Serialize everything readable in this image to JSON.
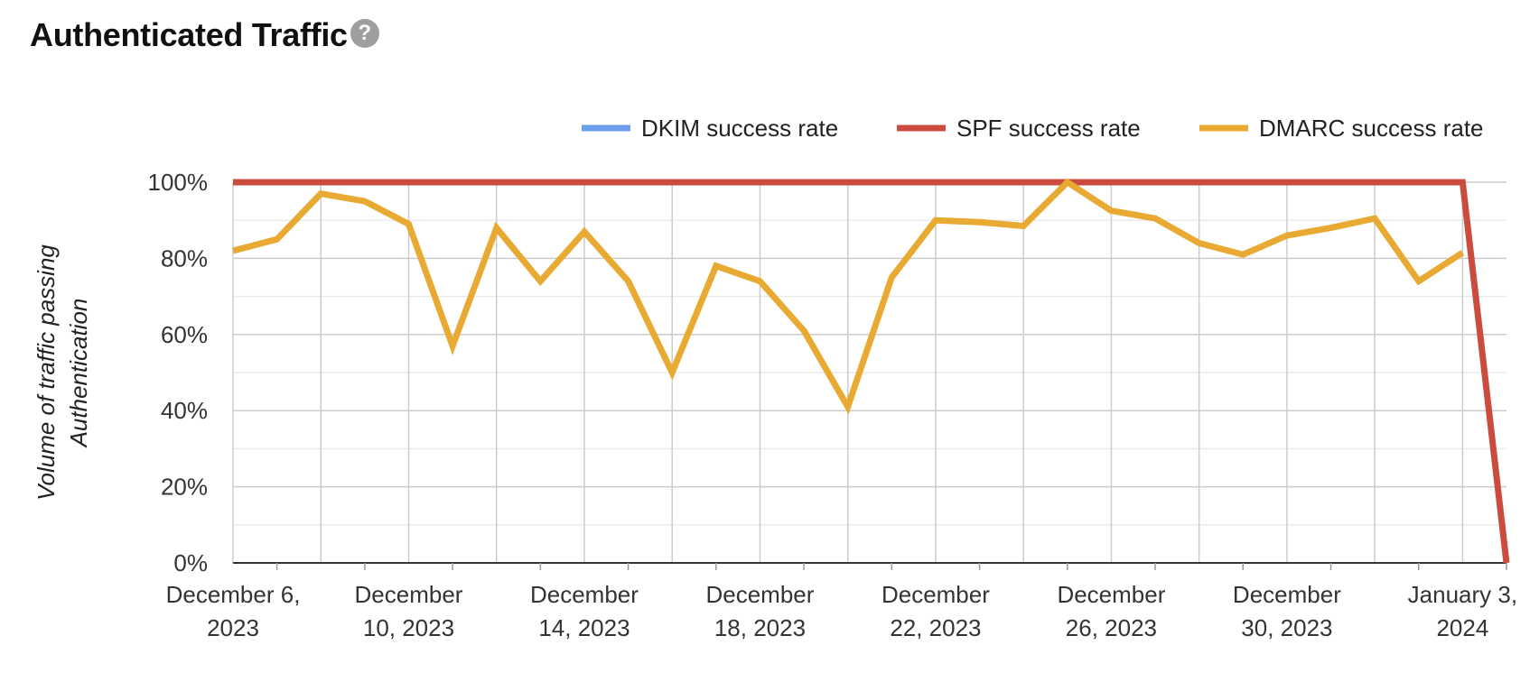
{
  "header": {
    "title": "Authenticated Traffic",
    "help_glyph": "?"
  },
  "chart_data": {
    "type": "line",
    "title": "Authenticated Traffic",
    "ylabel_lines": [
      "Volume of traffic passing",
      "Authentication"
    ],
    "xlabel": "",
    "ylim": [
      0,
      100
    ],
    "yticks": [
      "0%",
      "20%",
      "40%",
      "60%",
      "80%",
      "100%"
    ],
    "x_tick_labels": [
      [
        "December 6,",
        "2023"
      ],
      [
        "December",
        "10, 2023"
      ],
      [
        "December",
        "14, 2023"
      ],
      [
        "December",
        "18, 2023"
      ],
      [
        "December",
        "22, 2023"
      ],
      [
        "December",
        "26, 2023"
      ],
      [
        "December",
        "30, 2023"
      ],
      [
        "January 3,",
        "2024"
      ]
    ],
    "x": [
      "2023-12-06",
      "2023-12-07",
      "2023-12-08",
      "2023-12-09",
      "2023-12-10",
      "2023-12-11",
      "2023-12-12",
      "2023-12-13",
      "2023-12-14",
      "2023-12-15",
      "2023-12-16",
      "2023-12-17",
      "2023-12-18",
      "2023-12-19",
      "2023-12-20",
      "2023-12-21",
      "2023-12-22",
      "2023-12-23",
      "2023-12-24",
      "2023-12-25",
      "2023-12-26",
      "2023-12-27",
      "2023-12-28",
      "2023-12-29",
      "2023-12-30",
      "2023-12-31",
      "2024-01-01",
      "2024-01-02",
      "2024-01-03",
      "2024-01-04"
    ],
    "grid": true,
    "legend_position": "top-right",
    "series": [
      {
        "name": "DKIM success rate",
        "color": "#6d9eeb",
        "values": [
          null,
          null,
          null,
          null,
          null,
          null,
          null,
          null,
          null,
          null,
          null,
          null,
          null,
          null,
          null,
          null,
          null,
          null,
          null,
          null,
          null,
          null,
          null,
          null,
          null,
          null,
          null,
          null,
          null,
          null
        ]
      },
      {
        "name": "SPF success rate",
        "color": "#cc4b3f",
        "values": [
          100,
          100,
          100,
          100,
          100,
          100,
          100,
          100,
          100,
          100,
          100,
          100,
          100,
          100,
          100,
          100,
          100,
          100,
          100,
          100,
          100,
          100,
          100,
          100,
          100,
          100,
          100,
          100,
          100,
          0
        ]
      },
      {
        "name": "DMARC success rate",
        "color": "#e8aa33",
        "values": [
          82,
          85,
          97,
          95,
          89,
          57,
          88,
          74,
          87,
          74,
          50,
          78,
          74,
          61,
          41,
          75,
          90,
          89.5,
          88.5,
          100,
          92.5,
          90.5,
          84,
          81,
          86,
          88,
          90.5,
          74,
          81.5,
          null
        ]
      }
    ]
  }
}
